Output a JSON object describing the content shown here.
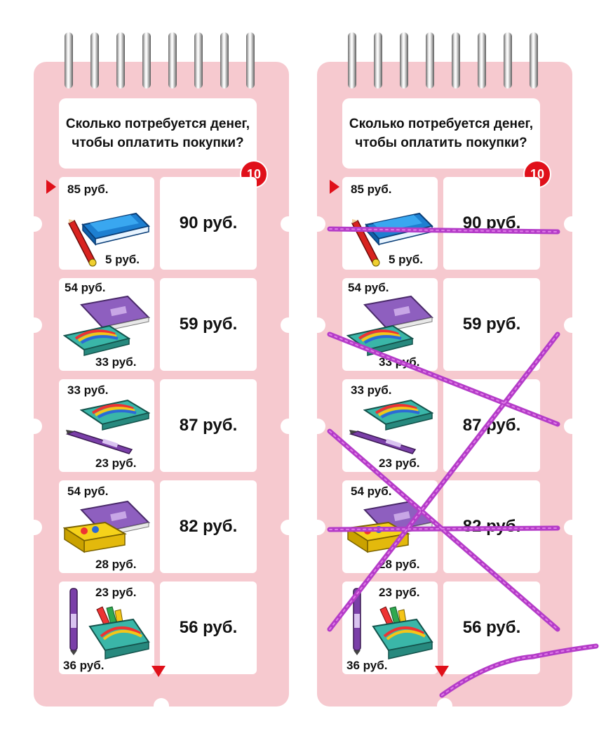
{
  "cards": [
    {
      "question": "Сколько потребуется денег, чтобы оплатить покупки?",
      "number": "10",
      "rows": [
        {
          "price_a": "85 руб.",
          "price_b": "5 руб.",
          "item_a": "book-icon",
          "item_b": "pencil-icon",
          "total": "90 руб."
        },
        {
          "price_a": "54 руб.",
          "price_b": "33 руб.",
          "item_a": "folder-icon",
          "item_b": "paint-box-icon",
          "total": "59 руб."
        },
        {
          "price_a": "33 руб.",
          "price_b": "23 руб.",
          "item_a": "paint-box-icon",
          "item_b": "pen-icon",
          "total": "87 руб."
        },
        {
          "price_a": "54 руб.",
          "price_b": "28 руб.",
          "item_a": "folder-icon",
          "item_b": "pencil-case-icon",
          "total": "82 руб."
        },
        {
          "price_a": "23 руб.",
          "price_b": "36 руб.",
          "item_a": "pen-icon",
          "item_b": "pencil-box-icon",
          "total": "56 руб."
        }
      ]
    },
    {
      "question": "Сколько потребуется денег, чтобы оплатить покупки?",
      "number": "10",
      "rows": [
        {
          "price_a": "85 руб.",
          "price_b": "5 руб.",
          "item_a": "book-icon",
          "item_b": "pencil-icon",
          "total": "90 руб."
        },
        {
          "price_a": "54 руб.",
          "price_b": "33 руб.",
          "item_a": "folder-icon",
          "item_b": "paint-box-icon",
          "total": "59 руб."
        },
        {
          "price_a": "33 руб.",
          "price_b": "23 руб.",
          "item_a": "paint-box-icon",
          "item_b": "pen-icon",
          "total": "87 руб."
        },
        {
          "price_a": "54 руб.",
          "price_b": "28 руб.",
          "item_a": "folder-icon",
          "item_b": "pencil-case-icon",
          "total": "82 руб."
        },
        {
          "price_a": "23 руб.",
          "price_b": "36 руб.",
          "item_a": "pen-icon",
          "item_b": "pencil-box-icon",
          "total": "56 руб."
        }
      ]
    }
  ],
  "colors": {
    "board": "#f6c9cf",
    "accent": "#e0101a",
    "lace": "#b43cc8"
  }
}
